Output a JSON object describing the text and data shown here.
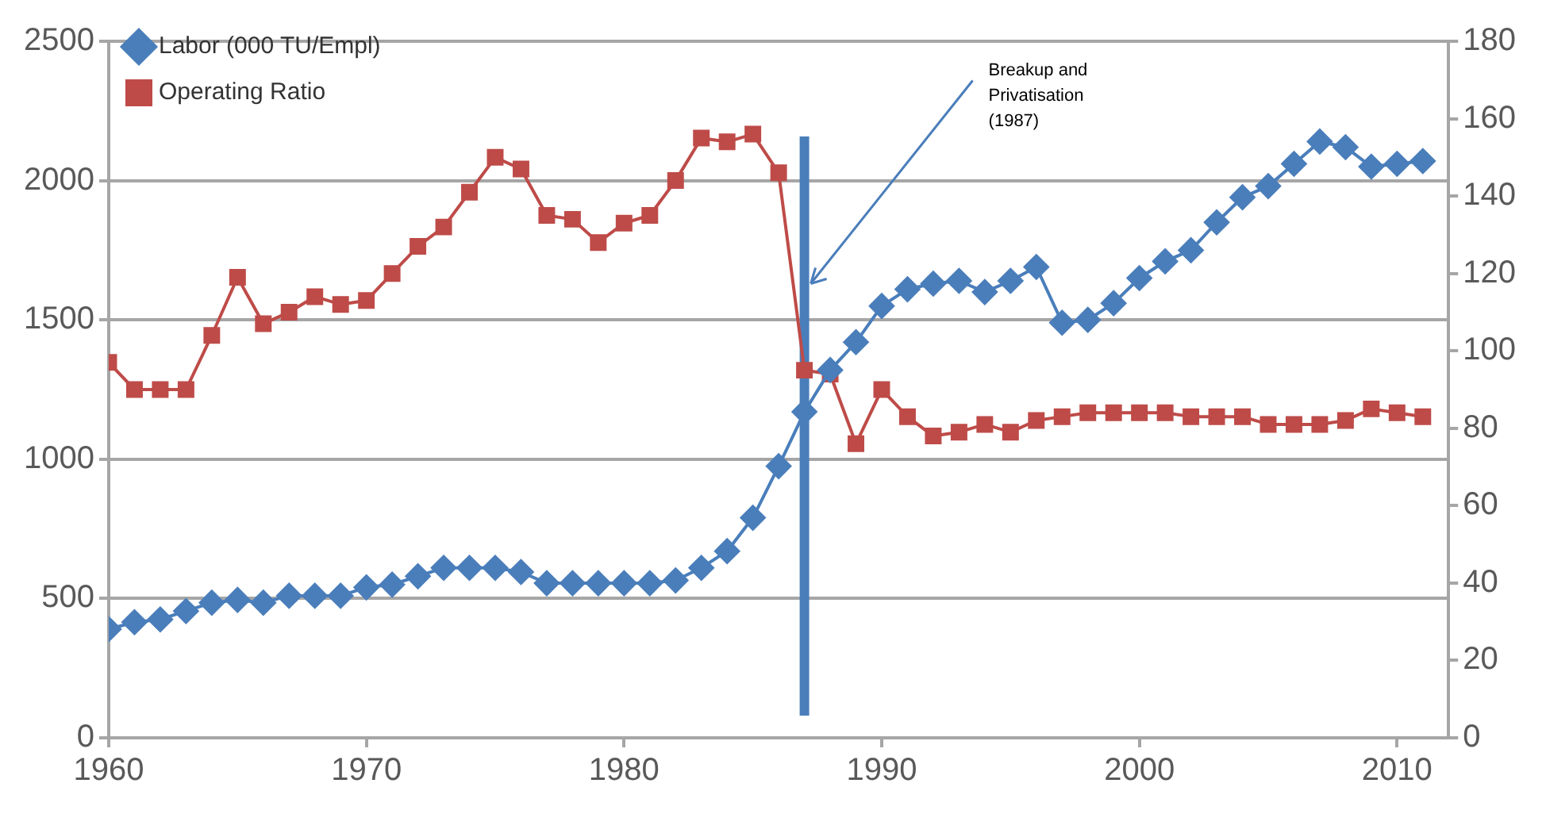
{
  "chart_data": {
    "type": "line",
    "x": [
      1960,
      1961,
      1962,
      1963,
      1964,
      1965,
      1966,
      1967,
      1968,
      1969,
      1970,
      1971,
      1972,
      1973,
      1974,
      1975,
      1976,
      1977,
      1978,
      1979,
      1980,
      1981,
      1982,
      1983,
      1984,
      1985,
      1986,
      1987,
      1988,
      1989,
      1990,
      1991,
      1992,
      1993,
      1994,
      1995,
      1996,
      1997,
      1998,
      1999,
      2000,
      2001,
      2002,
      2003,
      2004,
      2005,
      2006,
      2007,
      2008,
      2009,
      2010,
      2011
    ],
    "series": [
      {
        "name": "Labor (000 TU/Empl)",
        "color": "#4a7ebb",
        "marker": "diamond",
        "values": [
          390,
          415,
          425,
          455,
          485,
          495,
          485,
          510,
          510,
          510,
          540,
          550,
          580,
          610,
          610,
          610,
          595,
          555,
          555,
          555,
          555,
          555,
          565,
          610,
          670,
          790,
          975,
          1170,
          1320,
          1420,
          1550,
          1610,
          1630,
          1640,
          1600,
          1640,
          1690,
          1490,
          1500,
          1560,
          1650,
          1710,
          1750,
          1850,
          1940,
          1980,
          2060,
          2140,
          2120,
          2050,
          2060,
          2070
        ]
      },
      {
        "name": "Operating Ratio",
        "color": "#be4b48",
        "marker": "square",
        "axis": "y2",
        "values": [
          97,
          90,
          90,
          90,
          104,
          119,
          107,
          110,
          114,
          112,
          113,
          120,
          127,
          132,
          141,
          150,
          147,
          135,
          134,
          128,
          133,
          135,
          144,
          155,
          154,
          156,
          146,
          95,
          94,
          76,
          90,
          83,
          78,
          79,
          81,
          79,
          82,
          83,
          84,
          84,
          84,
          84,
          83,
          83,
          83,
          81,
          81,
          81,
          82,
          85,
          84,
          83
        ]
      }
    ],
    "xlim": [
      1960,
      2012
    ],
    "xticks": [
      1960,
      1970,
      1980,
      1990,
      2000,
      2010
    ],
    "ylim": [
      0,
      2500
    ],
    "yticks": [
      0,
      500,
      1000,
      1500,
      2000,
      2500
    ],
    "y2lim": [
      0,
      180
    ],
    "y2ticks": [
      0,
      20,
      40,
      60,
      80,
      100,
      120,
      140,
      160,
      180
    ],
    "ref_lines": [
      {
        "axis": "x",
        "value": 1987,
        "color": "#4a7ebb"
      }
    ],
    "annotations": [
      {
        "text": "Breakup and Privatisation (1987)",
        "x": 1987,
        "y": 1630
      }
    ],
    "grid": "y",
    "legend": "top left",
    "line_style": "solid"
  }
}
